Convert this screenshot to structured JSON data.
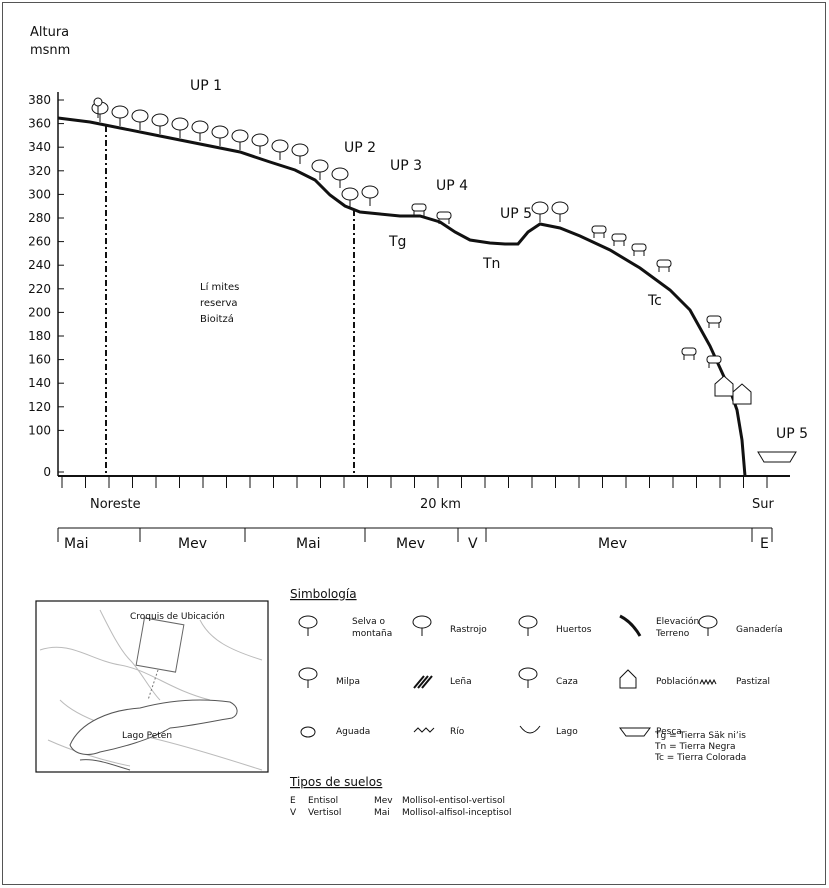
{
  "axis": {
    "y_title_line1": "Altura",
    "y_title_line2": "msnm",
    "y_ticks": [
      "380",
      "360",
      "340",
      "320",
      "300",
      "280",
      "260",
      "240",
      "220",
      "200",
      "180",
      "160",
      "140",
      "120",
      "100",
      "0"
    ],
    "x_left": "Noreste",
    "x_mid": "20 km",
    "x_right": "Sur"
  },
  "profile_labels": {
    "up1": "UP 1",
    "up2": "UP 2",
    "up3": "UP 3",
    "up4": "UP 4",
    "up5a": "UP 5",
    "up5b": "UP 5",
    "tg": "Tg",
    "tn": "Tn",
    "tc": "Tc"
  },
  "reserve_label": [
    "Lí mites",
    "reserva",
    "Bioitzá"
  ],
  "soil_bands": [
    {
      "label": "Mai"
    },
    {
      "label": "Mev"
    },
    {
      "label": "Mai"
    },
    {
      "label": "Mev"
    },
    {
      "label": "V"
    },
    {
      "label": "Mev"
    },
    {
      "label": "E"
    }
  ],
  "inset_map": {
    "title": "Croquis de Ubicación",
    "lake": "Lago Petén"
  },
  "legend": {
    "title": "Simbología",
    "items": [
      {
        "label1": "Selva o",
        "label2": "montaña",
        "icon": "forest-icon"
      },
      {
        "label1": "Rastrojo",
        "label2": "",
        "icon": "scrub-icon"
      },
      {
        "label1": "Huertos",
        "label2": "",
        "icon": "orchard-icon"
      },
      {
        "label1": "Elevación",
        "label2": "Terreno",
        "icon": "elevation-line-icon"
      },
      {
        "label1": "Ganadería",
        "label2": "",
        "icon": "cattle-icon"
      },
      {
        "label1": "Milpa",
        "label2": "",
        "icon": "corn-icon"
      },
      {
        "label1": "Leña",
        "label2": "",
        "icon": "firewood-icon"
      },
      {
        "label1": "Caza",
        "label2": "",
        "icon": "hunting-icon"
      },
      {
        "label1": "Población",
        "label2": "",
        "icon": "house-icon"
      },
      {
        "label1": "Pastizal",
        "label2": "",
        "icon": "grass-icon"
      },
      {
        "label1": "Aguada",
        "label2": "",
        "icon": "waterhole-icon"
      },
      {
        "label1": "Río",
        "label2": "",
        "icon": "river-icon"
      },
      {
        "label1": "Lago",
        "label2": "",
        "icon": "lake-icon"
      },
      {
        "label1": "Pesca",
        "label2": "",
        "icon": "fishing-boat-icon"
      }
    ],
    "soil_key": [
      "Tg = Tierra Säk ni’is",
      "Tn = Tierra Negra",
      "Tc = Tierra Colorada"
    ]
  },
  "soil_types": {
    "title": "Tipos de suelos",
    "rows": [
      {
        "code1": "E",
        "name1": "Entisol",
        "code2": "Mev",
        "name2": "Mollisol-entisol-vertisol"
      },
      {
        "code1": "V",
        "name1": "Vertisol",
        "code2": "Mai",
        "name2": "Mollisol-alfisol-inceptisol"
      }
    ]
  }
}
